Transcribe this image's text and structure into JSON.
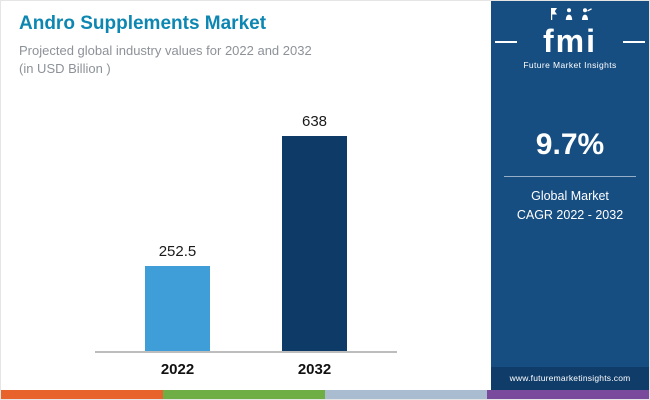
{
  "header": {
    "title": "Andro Supplements Market",
    "subtitle": "Projected global industry values for 2022 and 2032",
    "subtitle2": "(in USD Billion )"
  },
  "chart_data": {
    "type": "bar",
    "title": "Andro Supplements Market",
    "subtitle": "Projected global industry values for 2022 and 2032 (in USD Billion)",
    "categories": [
      "2022",
      "2032"
    ],
    "values": [
      252.5,
      638
    ],
    "labels": [
      "252.5",
      "638"
    ],
    "colors": [
      "#3f9ed8",
      "#0e3a68"
    ],
    "xlabel": "",
    "ylabel": "USD Billion",
    "ylim": [
      0,
      700
    ],
    "grid": false,
    "legend": "none"
  },
  "sidebar": {
    "logo_text": "fmi",
    "logo_subtitle": "Future Market Insights",
    "cagr": "9.7%",
    "cagr_line1": "Global Market",
    "cagr_line2": "CAGR 2022 - 2032",
    "website": "www.futuremarketinsights.com"
  },
  "colors": {
    "accent_title": "#0d87b2",
    "sidebar_bg": "#174e82",
    "bar_2022": "#3f9ed8",
    "bar_2032": "#0e3a68",
    "strip": [
      "#e8632c",
      "#6fae44",
      "#aabdd0",
      "#7a4b9d"
    ]
  }
}
